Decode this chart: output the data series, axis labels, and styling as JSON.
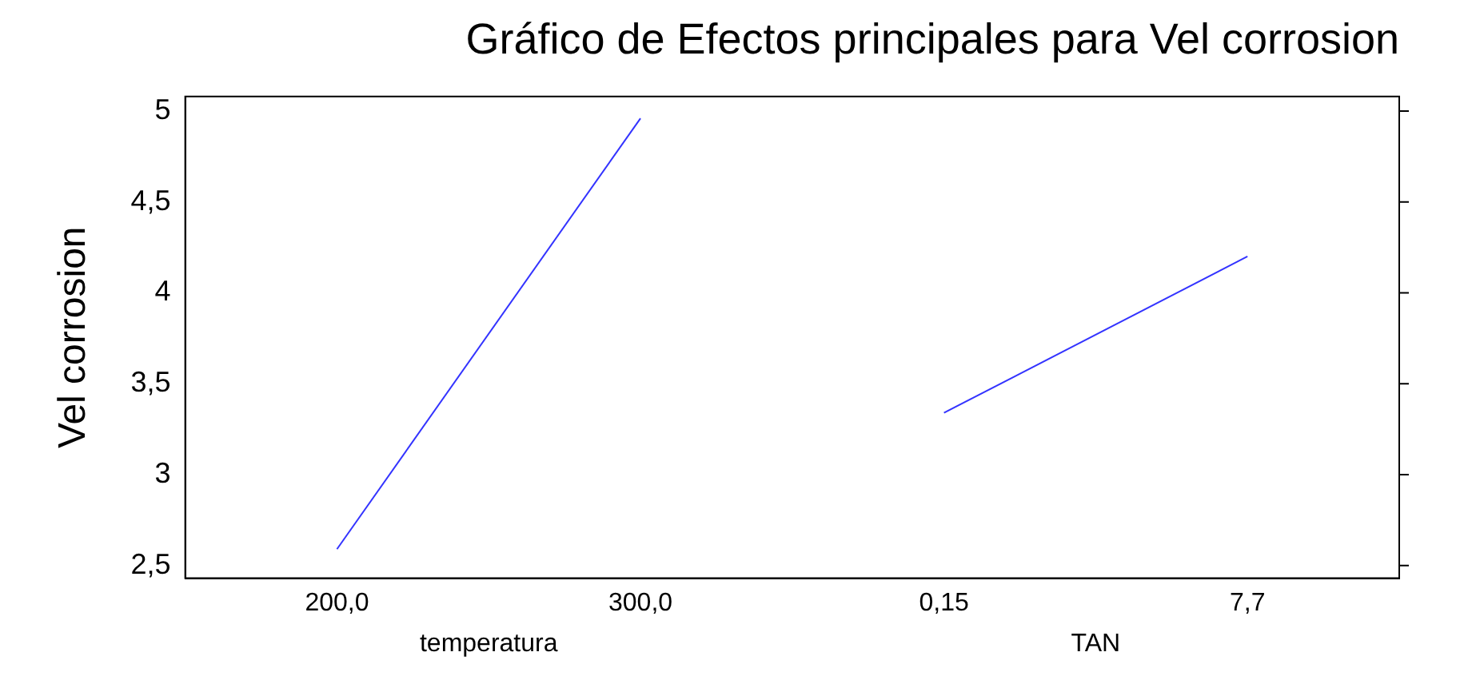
{
  "chart_data": {
    "type": "line",
    "title": "Gráfico de Efectos principales para Vel corrosion",
    "ylabel": "Vel corrosion",
    "categories": [
      "200,0",
      "300,0",
      "0,15",
      "7,7"
    ],
    "series": [
      {
        "color": "#3333ff",
        "values": [
          2.59,
          4.96,
          null,
          null
        ]
      },
      {
        "color": "#3333ff",
        "values": [
          null,
          null,
          3.34,
          4.2
        ]
      }
    ],
    "annotations": [
      "temperatura",
      "TAN"
    ],
    "ylim": [
      2.43,
      5.08
    ],
    "yticks": [
      {
        "value": 2.5,
        "label": "2,5"
      },
      {
        "value": 3,
        "label": "3"
      },
      {
        "value": 3.5,
        "label": "3,5"
      },
      {
        "value": 4,
        "label": "4"
      },
      {
        "value": 4.5,
        "label": "4,5"
      },
      {
        "value": 5,
        "label": "5"
      }
    ],
    "grid": false,
    "legend": false,
    "marker": "none",
    "line_style": "solid"
  }
}
